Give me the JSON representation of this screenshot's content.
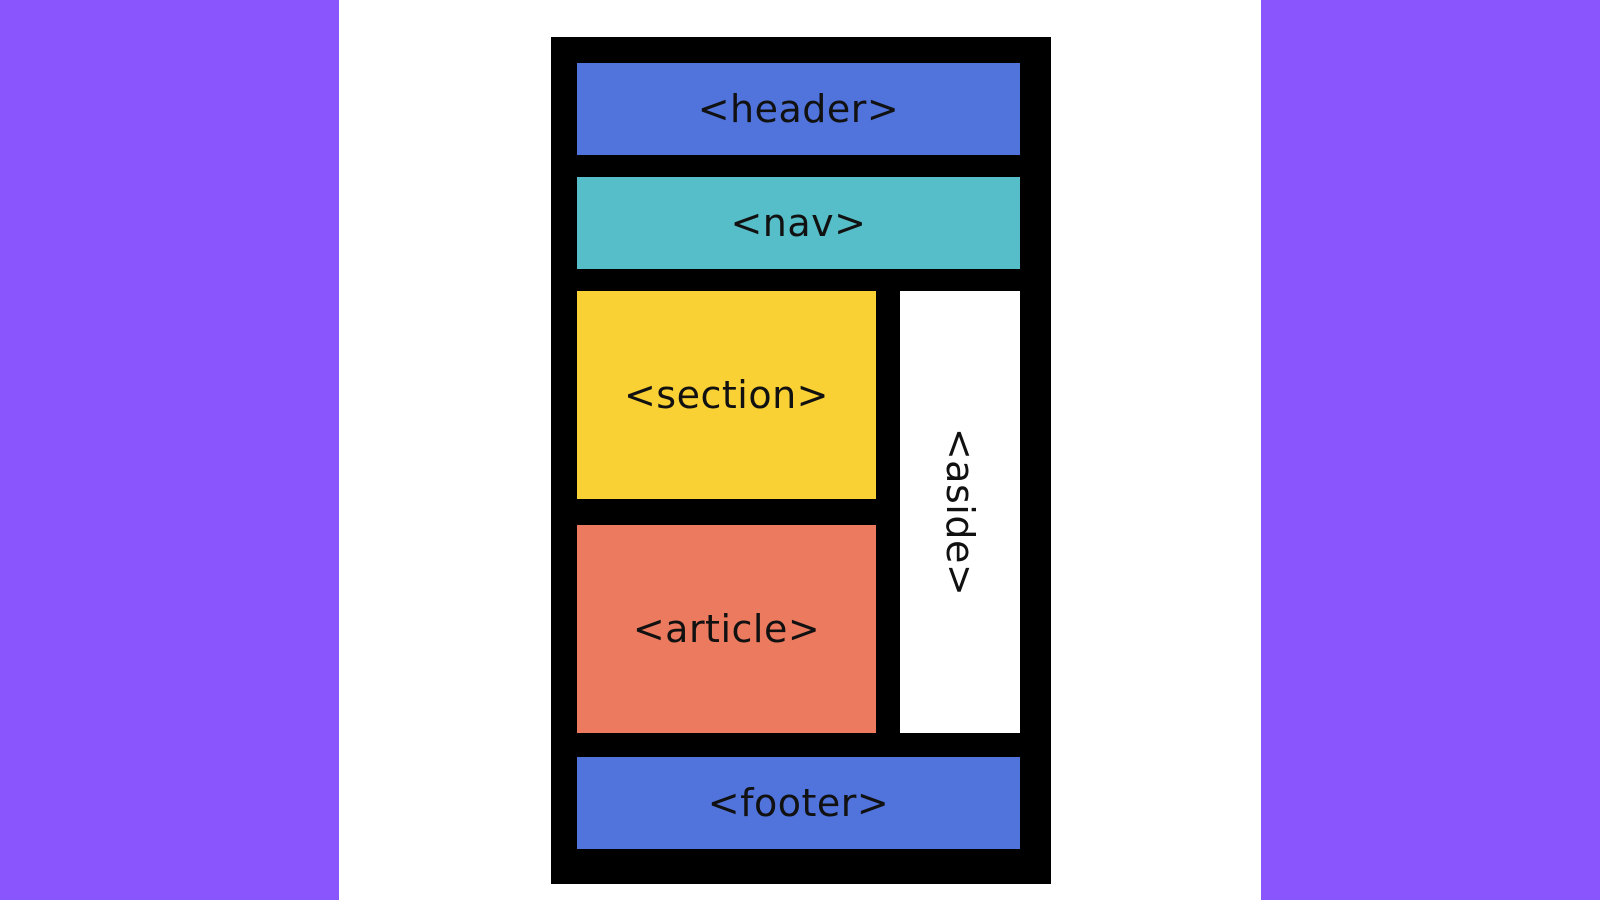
{
  "colors": {
    "side_band": "#8b55fd",
    "background": "#ffffff",
    "frame": "#000000",
    "header": "#5073dc",
    "nav": "#56bec8",
    "section": "#f9d134",
    "article": "#ec7a5e",
    "aside": "#ffffff",
    "footer": "#5073dc"
  },
  "layout": {
    "header": {
      "label": "<header>"
    },
    "nav": {
      "label": "<nav>"
    },
    "section": {
      "label": "<section>"
    },
    "article": {
      "label": "<article>"
    },
    "aside": {
      "label": "<aside>"
    },
    "footer": {
      "label": "<footer>"
    }
  }
}
